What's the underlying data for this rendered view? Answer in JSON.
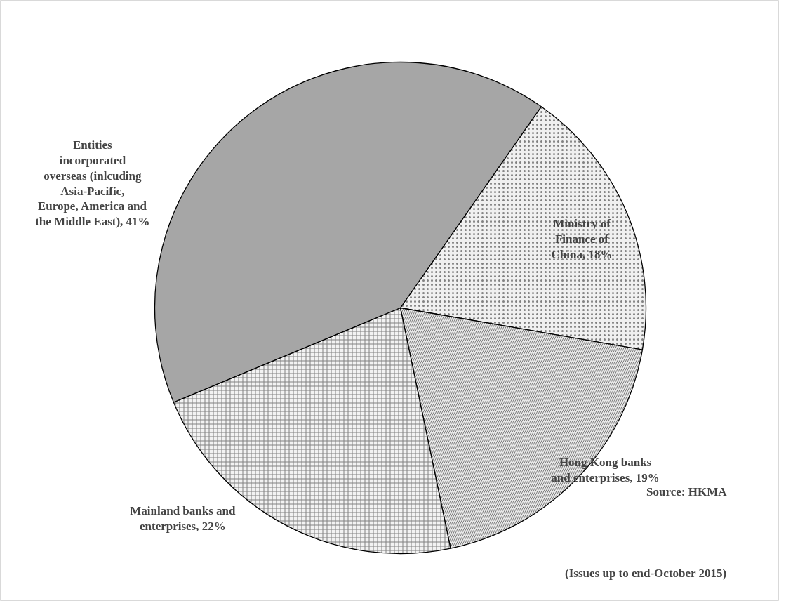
{
  "chart_data": {
    "type": "pie",
    "categories": [
      "Ministry of Finance of China",
      "Hong Kong banks and enterprises",
      "Mainland banks and enterprises",
      "Entities incorporated overseas (inlcuding Asia-Pacific, Europe, America and the Middle East)"
    ],
    "values": [
      18,
      19,
      22,
      41
    ],
    "value_labels": [
      "18%",
      "19%",
      "22%",
      "41%"
    ],
    "colors": [
      "#f0f0f0",
      "#e6e6e6",
      "#f2f2f2",
      "#a6a6a6"
    ],
    "annotations": [
      "Source: HKMA",
      "(Issues up to end-October 2015)"
    ]
  }
}
